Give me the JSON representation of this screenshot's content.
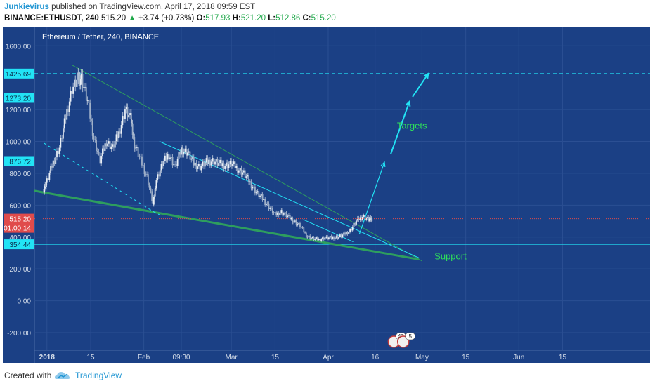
{
  "header": {
    "author": "Junkievirus",
    "published_text": " published on TradingView.com, April 17, 2018 09:59 EST",
    "symbol": "BINANCE:ETHUSDT, 240",
    "last_price": "515.20",
    "change_arrow": "▲",
    "change": "+3.74 (+0.73%)",
    "o_label": "O:",
    "o_value": "517.93",
    "h_label": "H:",
    "h_value": "521.20",
    "l_label": "L:",
    "l_value": "512.86",
    "c_label": "C:",
    "c_value": "515.20"
  },
  "footer": {
    "created_with": "Created with",
    "brand": "TradingView"
  },
  "colors": {
    "background": "#1b4085",
    "candle": "#c8d2e0",
    "cyan": "#22e3f5",
    "green": "#2e9e5e",
    "green_text": "#2ee05a",
    "price_marker": "#e04b4b"
  },
  "chart_data": {
    "type": "candlestick",
    "title": "Ethereum / Tether, 240, BINANCE",
    "ylim": [
      -310,
      1720
    ],
    "y_ticks": [
      "1600.00",
      "1200.00",
      "1000.00",
      "800.00",
      "600.00",
      "400.00",
      "200.00",
      "0.00",
      "-200.00"
    ],
    "y_tick_values": [
      1600,
      1200,
      1000,
      800,
      600,
      400,
      200,
      0,
      -200
    ],
    "x_ticks": [
      "2018",
      "15",
      "Feb",
      "09:30",
      "Mar",
      "15",
      "Apr",
      "16",
      "May",
      "15",
      "Jun",
      "15"
    ],
    "x_tick_days": [
      0,
      14,
      31,
      43,
      59,
      73,
      90,
      105,
      120,
      134,
      151,
      165
    ],
    "xlim_days": [
      -4,
      193
    ],
    "price_series": {
      "x_days": [
        -1,
        0,
        2,
        4,
        6,
        8,
        10,
        11,
        13,
        15,
        17,
        19,
        21,
        23,
        25,
        27,
        28,
        30,
        32,
        34,
        35,
        37,
        39,
        41,
        43,
        45,
        47,
        49,
        51,
        53,
        55,
        57,
        59,
        61,
        63,
        65,
        67,
        69,
        71,
        73,
        75,
        77,
        79,
        81,
        83,
        85,
        87,
        89,
        91,
        93,
        95,
        97,
        99,
        101,
        103,
        104
      ],
      "close": [
        700,
        750,
        870,
        960,
        1150,
        1330,
        1390,
        1400,
        1250,
        1020,
        880,
        1000,
        960,
        1050,
        1200,
        1130,
        980,
        880,
        780,
        600,
        760,
        860,
        920,
        840,
        950,
        930,
        860,
        840,
        870,
        880,
        860,
        850,
        860,
        830,
        800,
        740,
        680,
        640,
        590,
        540,
        560,
        530,
        500,
        470,
        410,
        390,
        385,
        395,
        395,
        400,
        415,
        440,
        500,
        530,
        510,
        515
      ]
    },
    "horizontal_levels": [
      {
        "value": 1425.69,
        "label": "1425.69",
        "style": "dashed"
      },
      {
        "value": 1273.2,
        "label": "1273.20",
        "style": "dashed"
      },
      {
        "value": 876.72,
        "label": "876.72",
        "style": "dashed"
      },
      {
        "value": 354.44,
        "label": "354.44",
        "style": "solid"
      }
    ],
    "price_marker": {
      "value": 515.2,
      "label": "515.20",
      "countdown": "01:00:14"
    },
    "trendlines": [
      {
        "from": [
          8,
          1480
        ],
        "to": [
          120,
          250
        ],
        "color": "green",
        "width": 1
      },
      {
        "from": [
          -4,
          690
        ],
        "to": [
          119,
          260
        ],
        "color": "green",
        "width": 3
      },
      {
        "from": [
          -1,
          990
        ],
        "to": [
          34,
          560
        ],
        "color": "cyan",
        "style": "dashed"
      },
      {
        "from": [
          34,
          560
        ],
        "to": [
          36,
          540
        ],
        "color": "cyan",
        "style": "dashed"
      },
      {
        "from": [
          36,
          1000
        ],
        "to": [
          119,
          270
        ],
        "color": "cyan",
        "width": 1
      },
      {
        "from": [
          82,
          510
        ],
        "to": [
          98,
          370
        ],
        "color": "cyan",
        "width": 1
      }
    ],
    "arrows": [
      {
        "from": [
          100,
          420
        ],
        "to": [
          108,
          870
        ],
        "width": 1.2
      },
      {
        "from": [
          110,
          920
        ],
        "to": [
          116,
          1250
        ],
        "width": 2
      },
      {
        "from": [
          117,
          1280
        ],
        "to": [
          122,
          1425
        ],
        "width": 2
      }
    ],
    "annotations": [
      {
        "text": "Targets",
        "x": 112,
        "y": 1080
      },
      {
        "text": "Support",
        "x": 124,
        "y": 260
      }
    ],
    "event_badges": [
      {
        "x": 111,
        "text": "43"
      },
      {
        "x": 114,
        "text": "5"
      }
    ]
  }
}
